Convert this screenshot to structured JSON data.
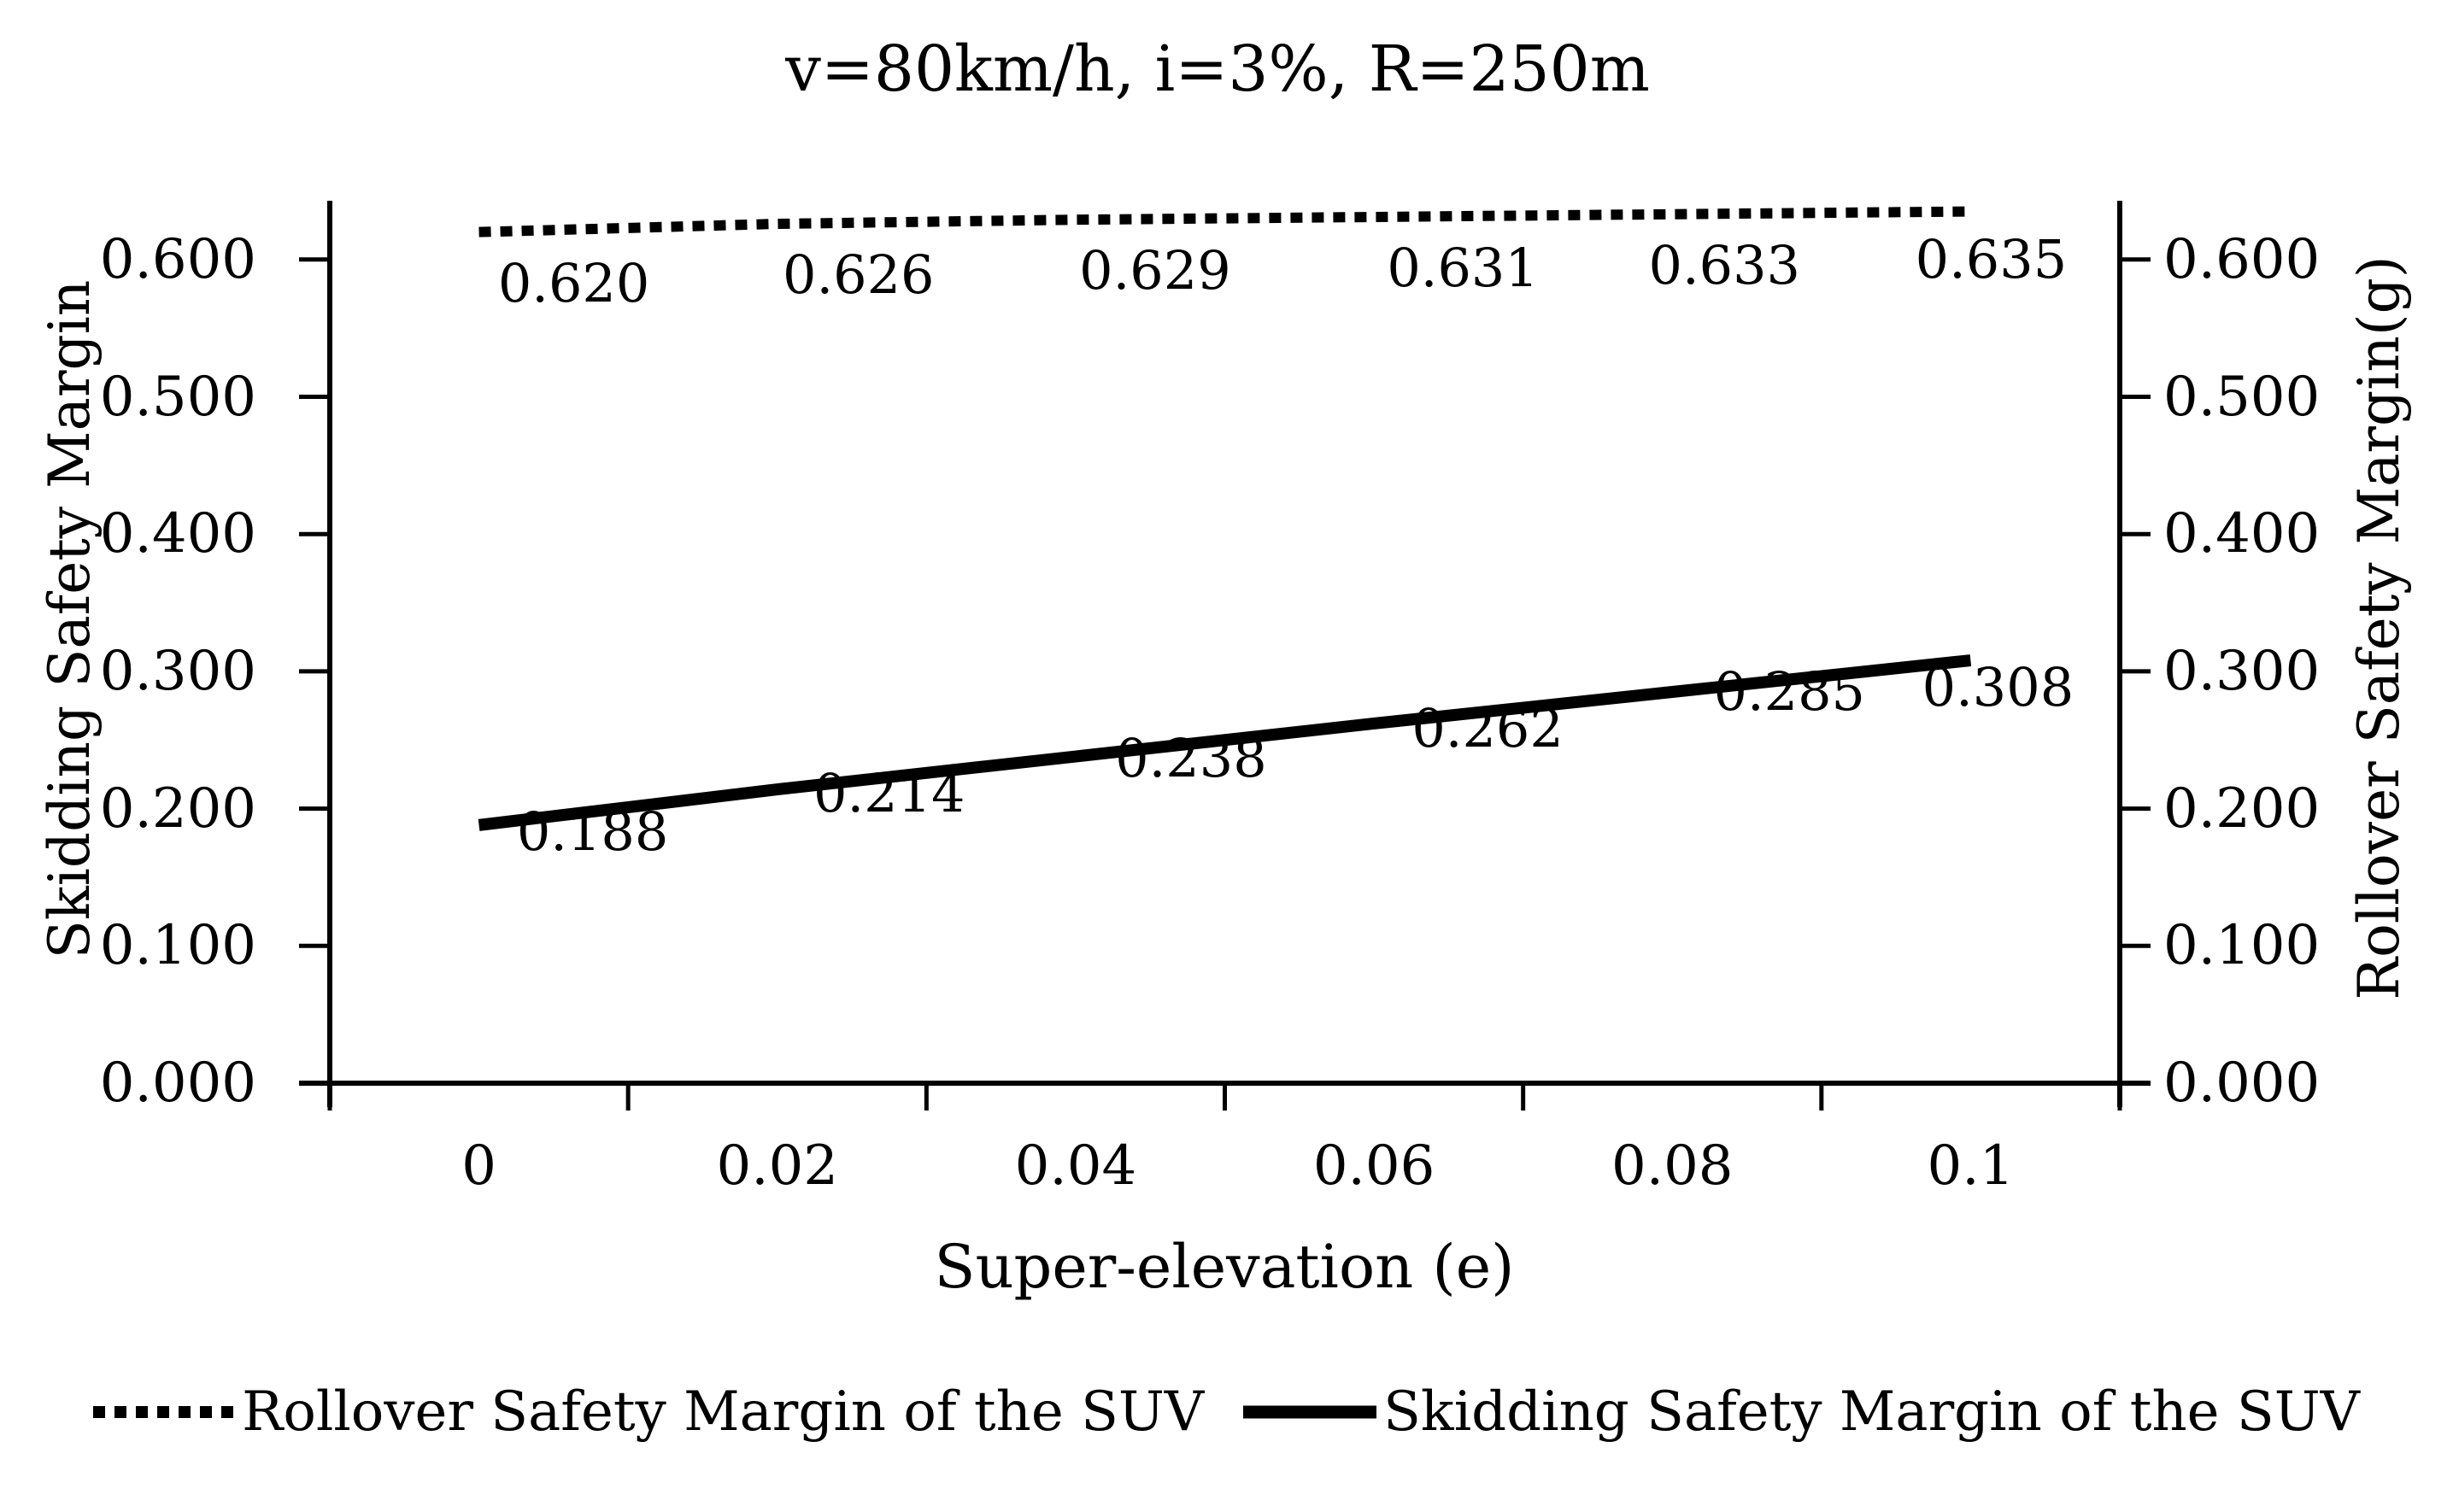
{
  "chart": {
    "title": "v=80km/h,  i=3%,  R=250m",
    "left_axis_title": "Skidding Safety Margin",
    "right_axis_title": "Rollover Safety Margin(g)",
    "x_axis_title": "Super-elevation (e)"
  },
  "chart_data": {
    "type": "line",
    "title": "v=80km/h, i=3%, R=250m",
    "xlabel": "Super-elevation (e)",
    "ylabel_left": "Skidding Safety Margin",
    "ylabel_right": "Rollover Safety Margin(g)",
    "categories": [
      "0",
      "0.02",
      "0.04",
      "0.06",
      "0.08",
      "0.1"
    ],
    "series": [
      {
        "name": "Rollover Safety Margin of the SUV",
        "style": "dotted",
        "axis": "right",
        "values": [
          0.62,
          0.626,
          0.629,
          0.631,
          0.633,
          0.635
        ],
        "point_labels": [
          "0.620",
          "0.626",
          "0.629",
          "0.631",
          "0.633",
          "0.635"
        ]
      },
      {
        "name": "Skidding Safety Margin of the SUV",
        "style": "solid",
        "axis": "left",
        "values": [
          0.188,
          0.214,
          0.238,
          0.262,
          0.285,
          0.308
        ],
        "point_labels": [
          "0.188",
          "0.214",
          "0.238",
          "0.262",
          "0.285",
          "0.308"
        ]
      }
    ],
    "y_ticks_left": [
      "0.600",
      "0.500",
      "0.400",
      "0.300",
      "0.200",
      "0.100",
      "0.000"
    ],
    "y_ticks_right": [
      "0.600",
      "0.500",
      "0.400",
      "0.300",
      "0.200",
      "0.100",
      "0.000"
    ],
    "ylim": [
      0.0,
      0.64
    ],
    "grid": false,
    "legend_position": "bottom",
    "colors": {
      "line": "#000000",
      "text": "#000000",
      "background": "#ffffff"
    }
  }
}
